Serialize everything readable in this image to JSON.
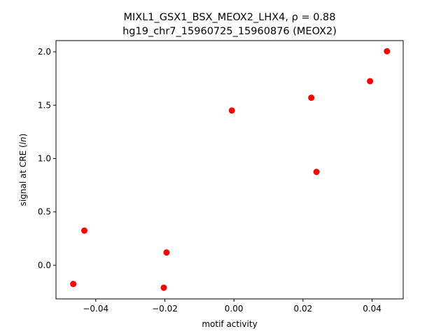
{
  "chart_data": {
    "type": "scatter",
    "title_line1": "MIXL1_GSX1_BSX_MEOX2_LHX4, ρ = 0.88",
    "title_line2": "hg19_chr7_15960725_15960876 (MEOX2)",
    "xlabel": "motif activity",
    "ylabel_prefix": "signal at CRE (",
    "ylabel_italic": "ln",
    "ylabel_suffix": ")",
    "xlim": [
      -0.0515,
      0.049
    ],
    "ylim": [
      -0.315,
      2.105
    ],
    "xticks": [
      {
        "value": -0.04,
        "label": "−0.04"
      },
      {
        "value": -0.02,
        "label": "−0.02"
      },
      {
        "value": 0.0,
        "label": "0.00"
      },
      {
        "value": 0.02,
        "label": "0.02"
      },
      {
        "value": 0.04,
        "label": "0.04"
      }
    ],
    "yticks": [
      {
        "value": 0.0,
        "label": "0.0"
      },
      {
        "value": 0.5,
        "label": "0.5"
      },
      {
        "value": 1.0,
        "label": "1.0"
      },
      {
        "value": 1.5,
        "label": "1.5"
      },
      {
        "value": 2.0,
        "label": "2.0"
      }
    ],
    "point_color": "#ff0000",
    "points": [
      {
        "x": -0.0465,
        "y": -0.175
      },
      {
        "x": -0.0433,
        "y": 0.325
      },
      {
        "x": -0.0203,
        "y": -0.21
      },
      {
        "x": -0.0195,
        "y": 0.12
      },
      {
        "x": -0.0006,
        "y": 1.45
      },
      {
        "x": 0.0224,
        "y": 1.57
      },
      {
        "x": 0.0239,
        "y": 0.875
      },
      {
        "x": 0.0394,
        "y": 1.725
      },
      {
        "x": 0.0443,
        "y": 2.005
      }
    ],
    "grid": false
  }
}
